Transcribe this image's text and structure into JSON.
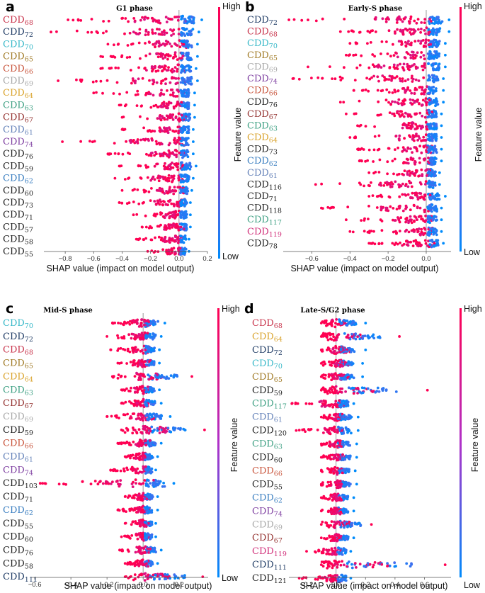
{
  "chart_data": [
    {
      "type": "scatter",
      "panel": "a",
      "title": "G1 phase",
      "xlabel": "SHAP value (impact on model output)",
      "xlim": [
        -0.95,
        0.2
      ],
      "xticks": [
        -0.8,
        -0.6,
        -0.4,
        -0.2,
        0.0,
        0.2
      ],
      "xtick_labels": [
        "−0.8",
        "−0.6",
        "−0.4",
        "−0.2",
        "0.0",
        "0.2"
      ],
      "colorbar": {
        "high": "High",
        "low": "Low",
        "label": "Feature value"
      },
      "features": [
        {
          "name": "CDD",
          "sub": "68",
          "color": "#c8324a",
          "neg": 0.78,
          "pos": 0.16
        },
        {
          "name": "CDD",
          "sub": "72",
          "color": "#1f3b64",
          "neg": 0.9,
          "pos": 0.14
        },
        {
          "name": "CDD",
          "sub": "70",
          "color": "#37b8c8",
          "neg": 0.5,
          "pos": 0.13
        },
        {
          "name": "CDD",
          "sub": "65",
          "color": "#a07a25",
          "neg": 0.55,
          "pos": 0.13
        },
        {
          "name": "CDD",
          "sub": "66",
          "color": "#c8533a",
          "neg": 0.55,
          "pos": 0.12
        },
        {
          "name": "CDD",
          "sub": "69",
          "color": "#a8a8a8",
          "neg": 0.85,
          "pos": 0.13
        },
        {
          "name": "CDD",
          "sub": "64",
          "color": "#d9a22a",
          "neg": 0.6,
          "pos": 0.11
        },
        {
          "name": "CDD",
          "sub": "63",
          "color": "#3ea083",
          "neg": 0.42,
          "pos": 0.11
        },
        {
          "name": "CDD",
          "sub": "67",
          "color": "#93302e",
          "neg": 0.4,
          "pos": 0.11
        },
        {
          "name": "CDD",
          "sub": "61",
          "color": "#6381b8",
          "neg": 0.4,
          "pos": 0.1
        },
        {
          "name": "CDD",
          "sub": "74",
          "color": "#7d3da0",
          "neg": 0.82,
          "pos": 0.1
        },
        {
          "name": "CDD",
          "sub": "76",
          "color": "#222222",
          "neg": 0.5,
          "pos": 0.1
        },
        {
          "name": "CDD",
          "sub": "59",
          "color": "#222222",
          "neg": 0.42,
          "pos": 0.12
        },
        {
          "name": "CDD",
          "sub": "62",
          "color": "#3a7ec0",
          "neg": 0.45,
          "pos": 0.1
        },
        {
          "name": "CDD",
          "sub": "60",
          "color": "#222222",
          "neg": 0.4,
          "pos": 0.09
        },
        {
          "name": "CDD",
          "sub": "73",
          "color": "#222222",
          "neg": 0.42,
          "pos": 0.08
        },
        {
          "name": "CDD",
          "sub": "71",
          "color": "#222222",
          "neg": 0.32,
          "pos": 0.08
        },
        {
          "name": "CDD",
          "sub": "57",
          "color": "#222222",
          "neg": 0.26,
          "pos": 0.08
        },
        {
          "name": "CDD",
          "sub": "58",
          "color": "#222222",
          "neg": 0.3,
          "pos": 0.07
        },
        {
          "name": "CDD",
          "sub": "55",
          "color": "#222222",
          "neg": 0.22,
          "pos": 0.07
        }
      ]
    },
    {
      "type": "scatter",
      "panel": "b",
      "title": "Early-S phase",
      "xlabel": "SHAP value (impact on model output)",
      "xlim": [
        -0.75,
        0.13
      ],
      "xticks": [
        -0.6,
        -0.4,
        -0.2,
        0.0
      ],
      "xtick_labels": [
        "−0.6",
        "−0.4",
        "−0.2",
        "0.0"
      ],
      "colorbar": {
        "high": "High",
        "low": "Low",
        "label": "Feature value"
      },
      "features": [
        {
          "name": "CDD",
          "sub": "72",
          "color": "#1f3b64",
          "neg": 0.72,
          "pos": 0.12
        },
        {
          "name": "CDD",
          "sub": "68",
          "color": "#c8324a",
          "neg": 0.45,
          "pos": 0.12
        },
        {
          "name": "CDD",
          "sub": "70",
          "color": "#37b8c8",
          "neg": 0.4,
          "pos": 0.1
        },
        {
          "name": "CDD",
          "sub": "65",
          "color": "#a07a25",
          "neg": 0.42,
          "pos": 0.1
        },
        {
          "name": "CDD",
          "sub": "69",
          "color": "#a8a8a8",
          "neg": 0.62,
          "pos": 0.1
        },
        {
          "name": "CDD",
          "sub": "74",
          "color": "#7d3da0",
          "neg": 0.7,
          "pos": 0.09
        },
        {
          "name": "CDD",
          "sub": "66",
          "color": "#c8533a",
          "neg": 0.38,
          "pos": 0.09
        },
        {
          "name": "CDD",
          "sub": "76",
          "color": "#222222",
          "neg": 0.45,
          "pos": 0.09
        },
        {
          "name": "CDD",
          "sub": "67",
          "color": "#93302e",
          "neg": 0.42,
          "pos": 0.08
        },
        {
          "name": "CDD",
          "sub": "63",
          "color": "#3ea083",
          "neg": 0.36,
          "pos": 0.08
        },
        {
          "name": "CDD",
          "sub": "64",
          "color": "#d9a22a",
          "neg": 0.4,
          "pos": 0.08
        },
        {
          "name": "CDD",
          "sub": "73",
          "color": "#222222",
          "neg": 0.36,
          "pos": 0.08
        },
        {
          "name": "CDD",
          "sub": "62",
          "color": "#3a7ec0",
          "neg": 0.35,
          "pos": 0.08
        },
        {
          "name": "CDD",
          "sub": "61",
          "color": "#6381b8",
          "neg": 0.3,
          "pos": 0.07
        },
        {
          "name": "CDD",
          "sub": "116",
          "color": "#222222",
          "neg": 0.58,
          "pos": 0.07
        },
        {
          "name": "CDD",
          "sub": "71",
          "color": "#222222",
          "neg": 0.3,
          "pos": 0.1
        },
        {
          "name": "CDD",
          "sub": "118",
          "color": "#222222",
          "neg": 0.55,
          "pos": 0.08
        },
        {
          "name": "CDD",
          "sub": "117",
          "color": "#3ea083",
          "neg": 0.42,
          "pos": 0.08
        },
        {
          "name": "CDD",
          "sub": "119",
          "color": "#d1307a",
          "neg": 0.4,
          "pos": 0.08
        },
        {
          "name": "CDD",
          "sub": "78",
          "color": "#222222",
          "neg": 0.3,
          "pos": 0.09
        }
      ]
    },
    {
      "type": "scatter",
      "panel": "c",
      "title": "Mid-S phase",
      "xlabel": "SHAP value (impact on model output)",
      "xlim": [
        -0.62,
        0.36
      ],
      "xticks": [
        -0.6,
        -0.4,
        -0.2,
        0.0,
        0.2
      ],
      "xtick_labels": [
        "−0.6",
        "−0.4",
        "−0.2",
        "0.0",
        "0.2"
      ],
      "colorbar": {
        "high": "High",
        "low": "Low",
        "label": "Feature value"
      },
      "features": [
        {
          "name": "CDD",
          "sub": "70",
          "color": "#37b8c8",
          "neg": 0.17,
          "pos": 0.12
        },
        {
          "name": "CDD",
          "sub": "72",
          "color": "#1f3b64",
          "neg": 0.2,
          "pos": 0.1
        },
        {
          "name": "CDD",
          "sub": "68",
          "color": "#c8324a",
          "neg": 0.18,
          "pos": 0.09
        },
        {
          "name": "CDD",
          "sub": "65",
          "color": "#a07a25",
          "neg": 0.14,
          "pos": 0.09
        },
        {
          "name": "CDD",
          "sub": "64",
          "color": "#d9a22a",
          "neg": 0.17,
          "pos": 0.27
        },
        {
          "name": "CDD",
          "sub": "63",
          "color": "#3ea083",
          "neg": 0.12,
          "pos": 0.09
        },
        {
          "name": "CDD",
          "sub": "67",
          "color": "#93302e",
          "neg": 0.12,
          "pos": 0.1
        },
        {
          "name": "CDD",
          "sub": "69",
          "color": "#a8a8a8",
          "neg": 0.2,
          "pos": 0.15
        },
        {
          "name": "CDD",
          "sub": "59",
          "color": "#222222",
          "neg": 0.12,
          "pos": 0.34
        },
        {
          "name": "CDD",
          "sub": "66",
          "color": "#c8533a",
          "neg": 0.14,
          "pos": 0.1
        },
        {
          "name": "CDD",
          "sub": "61",
          "color": "#6381b8",
          "neg": 0.1,
          "pos": 0.08
        },
        {
          "name": "CDD",
          "sub": "74",
          "color": "#7d3da0",
          "neg": 0.18,
          "pos": 0.07
        },
        {
          "name": "CDD",
          "sub": "103",
          "color": "#222222",
          "neg": 0.57,
          "pos": 0.17
        },
        {
          "name": "CDD",
          "sub": "71",
          "color": "#222222",
          "neg": 0.1,
          "pos": 0.08
        },
        {
          "name": "CDD",
          "sub": "62",
          "color": "#3a7ec0",
          "neg": 0.14,
          "pos": 0.08
        },
        {
          "name": "CDD",
          "sub": "55",
          "color": "#222222",
          "neg": 0.1,
          "pos": 0.07
        },
        {
          "name": "CDD",
          "sub": "60",
          "color": "#222222",
          "neg": 0.12,
          "pos": 0.07
        },
        {
          "name": "CDD",
          "sub": "76",
          "color": "#222222",
          "neg": 0.13,
          "pos": 0.1
        },
        {
          "name": "CDD",
          "sub": "58",
          "color": "#222222",
          "neg": 0.1,
          "pos": 0.08
        },
        {
          "name": "CDD",
          "sub": "111",
          "color": "#1f3b64",
          "neg": 0.1,
          "pos": 0.33
        }
      ]
    },
    {
      "type": "scatter",
      "panel": "d",
      "title": "Late-S/G2 phase",
      "xlabel": "SHAP value (impact on model output)",
      "xlim": [
        -0.32,
        0.78
      ],
      "xticks": [
        -0.2,
        0.0,
        0.2,
        0.4,
        0.6
      ],
      "xtick_labels": [
        "−0.2",
        "0.0",
        "0.2",
        "0.4",
        "0.6"
      ],
      "colorbar": {
        "high": "High",
        "low": "Low",
        "label": "Feature value"
      },
      "features": [
        {
          "name": "CDD",
          "sub": "68",
          "color": "#c8324a",
          "neg": 0.1,
          "pos": 0.2
        },
        {
          "name": "CDD",
          "sub": "64",
          "color": "#d9a22a",
          "neg": 0.1,
          "pos": 0.43
        },
        {
          "name": "CDD",
          "sub": "72",
          "color": "#1f3b64",
          "neg": 0.1,
          "pos": 0.2
        },
        {
          "name": "CDD",
          "sub": "70",
          "color": "#37b8c8",
          "neg": 0.1,
          "pos": 0.18
        },
        {
          "name": "CDD",
          "sub": "65",
          "color": "#a07a25",
          "neg": 0.1,
          "pos": 0.18
        },
        {
          "name": "CDD",
          "sub": "59",
          "color": "#222222",
          "neg": 0.1,
          "pos": 0.62
        },
        {
          "name": "CDD",
          "sub": "117",
          "color": "#3ea083",
          "neg": 0.3,
          "pos": 0.12
        },
        {
          "name": "CDD",
          "sub": "61",
          "color": "#6381b8",
          "neg": 0.1,
          "pos": 0.15
        },
        {
          "name": "CDD",
          "sub": "120",
          "color": "#222222",
          "neg": 0.27,
          "pos": 0.15
        },
        {
          "name": "CDD",
          "sub": "63",
          "color": "#3ea083",
          "neg": 0.1,
          "pos": 0.14
        },
        {
          "name": "CDD",
          "sub": "60",
          "color": "#222222",
          "neg": 0.1,
          "pos": 0.14
        },
        {
          "name": "CDD",
          "sub": "66",
          "color": "#c8533a",
          "neg": 0.1,
          "pos": 0.13
        },
        {
          "name": "CDD",
          "sub": "55",
          "color": "#222222",
          "neg": 0.1,
          "pos": 0.14
        },
        {
          "name": "CDD",
          "sub": "62",
          "color": "#3a7ec0",
          "neg": 0.1,
          "pos": 0.12
        },
        {
          "name": "CDD",
          "sub": "74",
          "color": "#7d3da0",
          "neg": 0.1,
          "pos": 0.12
        },
        {
          "name": "CDD",
          "sub": "69",
          "color": "#a8a8a8",
          "neg": 0.1,
          "pos": 0.24
        },
        {
          "name": "CDD",
          "sub": "67",
          "color": "#93302e",
          "neg": 0.1,
          "pos": 0.12
        },
        {
          "name": "CDD",
          "sub": "119",
          "color": "#d1307a",
          "neg": 0.2,
          "pos": 0.1
        },
        {
          "name": "CDD",
          "sub": "111",
          "color": "#1f3b64",
          "neg": 0.1,
          "pos": 0.74
        },
        {
          "name": "CDD",
          "sub": "121",
          "color": "#222222",
          "neg": 0.25,
          "pos": 0.1
        }
      ]
    }
  ],
  "colors": {
    "high": "#ff0052",
    "low": "#008bfb",
    "zero_line": "#999999"
  }
}
